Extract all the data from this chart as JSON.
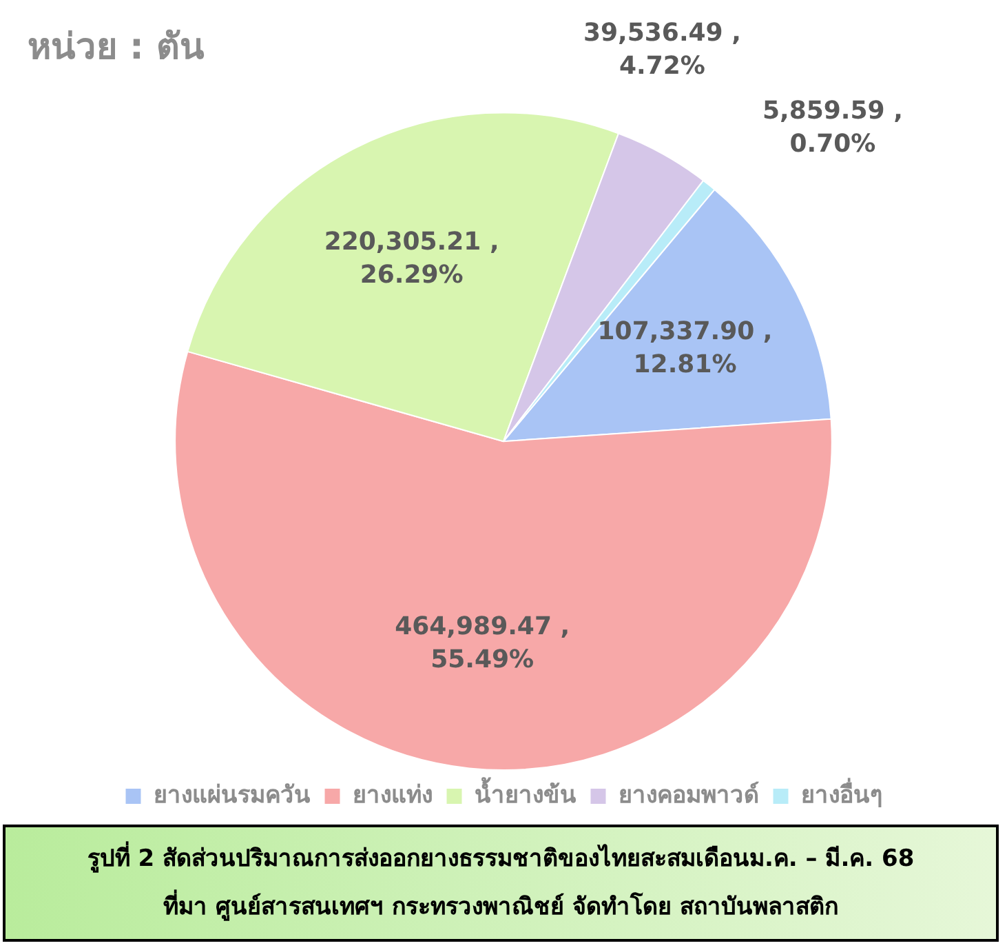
{
  "chart_data": {
    "type": "pie",
    "title": "หน่วย : ตัน",
    "categories": [
      "ยางแผ่นรมควัน",
      "ยางแท่ง",
      "น้ำยางข้น",
      "ยางคอมพาวด์",
      "ยางอื่นๆ"
    ],
    "values": [
      107337.9,
      464989.47,
      220305.21,
      39536.49,
      5859.59
    ],
    "colors": [
      "#a9c4f5",
      "#f7a8a8",
      "#d8f5b0",
      "#d5c6e8",
      "#b8ecf8"
    ],
    "value_labels": [
      "107,337.90 , 12.81%",
      "464,989.47 , 55.49%",
      "220,305.21 , 26.29%",
      "39,536.49 , 4.72%",
      "5,859.59 , 0.70%"
    ],
    "legend": "bottom",
    "annotations": [
      "รูปที่ 2 สัดส่วนปริมาณการส่งออกยางธรรมชาติของไทยสะสมเดือนม.ค. – มี.ค. 68",
      "ที่มา ศูนย์สารสนเทศฯ กระทรวงพาณิชย์ จัดทำโดย สถาบันพลาสติก"
    ]
  }
}
